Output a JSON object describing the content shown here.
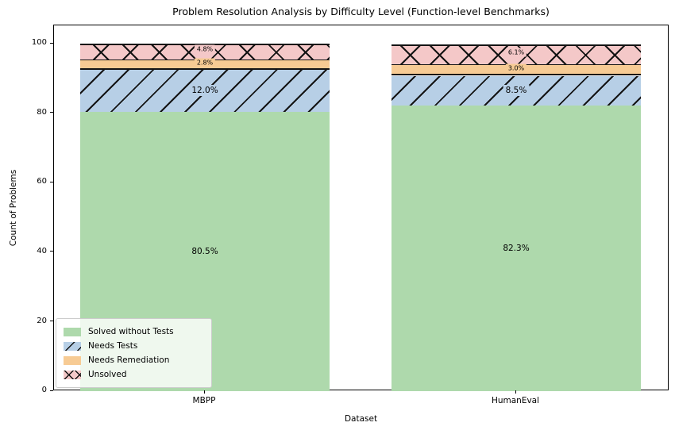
{
  "title": "Problem Resolution Analysis by Difficulty Level (Function-level Benchmarks)",
  "axes": {
    "ylabel": "Count of Problems",
    "xlabel": "Dataset",
    "yticks": [
      "0",
      "20",
      "40",
      "60",
      "80",
      "100"
    ]
  },
  "legend": {
    "items": [
      {
        "label": "Solved without Tests",
        "color": "#aed9ac",
        "hatch": "none"
      },
      {
        "label": "Needs Tests",
        "color": "#b7cfe6",
        "hatch": "diagonal"
      },
      {
        "label": "Needs Remediation",
        "color": "#f7cb94",
        "hatch": "none"
      },
      {
        "label": "Unsolved",
        "color": "#f4c8c8",
        "hatch": "cross"
      }
    ]
  },
  "chart_data": {
    "type": "bar",
    "stacked": true,
    "title": "Problem Resolution Analysis by Difficulty Level (Function-level Benchmarks)",
    "xlabel": "Dataset",
    "ylabel": "Count of Problems",
    "ylim": [
      0,
      105.3
    ],
    "grid": false,
    "legend_position": "lower left",
    "categories": [
      "MBPP",
      "HumanEval"
    ],
    "series": [
      {
        "name": "Solved without Tests",
        "values": [
          80.5,
          82.3
        ],
        "labels": [
          "80.5%",
          "82.3%"
        ],
        "color": "#aed9ac",
        "hatch": "none"
      },
      {
        "name": "Needs Tests",
        "values": [
          12.0,
          8.5
        ],
        "labels": [
          "12.0%",
          "8.5%"
        ],
        "color": "#b7cfe6",
        "hatch": "diagonal"
      },
      {
        "name": "Needs Remediation",
        "values": [
          2.8,
          3.0
        ],
        "labels": [
          "2.8%",
          "3.0%"
        ],
        "color": "#f7cb94",
        "hatch": "none"
      },
      {
        "name": "Unsolved",
        "values": [
          4.8,
          6.1
        ],
        "labels": [
          "4.8%",
          "6.1%"
        ],
        "color": "#f4c8c8",
        "hatch": "cross"
      }
    ]
  }
}
